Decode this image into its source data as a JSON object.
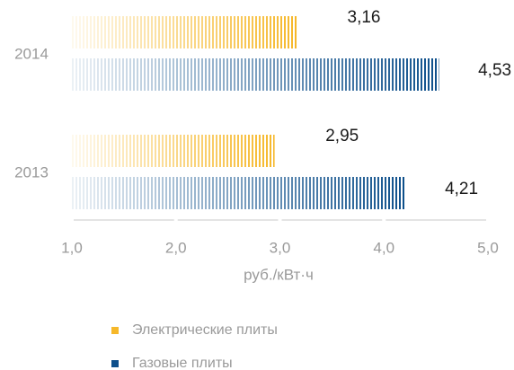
{
  "chart_data": {
    "type": "bar",
    "orientation": "horizontal",
    "categories": [
      "2014",
      "2013"
    ],
    "series": [
      {
        "name": "Электрические плиты",
        "color": "#f6b82a",
        "values": [
          3.16,
          2.95
        ],
        "value_labels": [
          "3,16",
          "2,95"
        ]
      },
      {
        "name": "Газовые плиты",
        "color": "#0d4f8b",
        "values": [
          4.53,
          4.21
        ],
        "value_labels": [
          "4,53",
          "4,21"
        ]
      }
    ],
    "xlabel": "руб./кВт·ч",
    "xlim": [
      1,
      5
    ],
    "xticks": [
      {
        "value": 1,
        "label": "1,0"
      },
      {
        "value": 2,
        "label": "2,0"
      },
      {
        "value": 3,
        "label": "3,0"
      },
      {
        "value": 4,
        "label": "4,0"
      },
      {
        "value": 5,
        "label": "5,0"
      }
    ]
  }
}
